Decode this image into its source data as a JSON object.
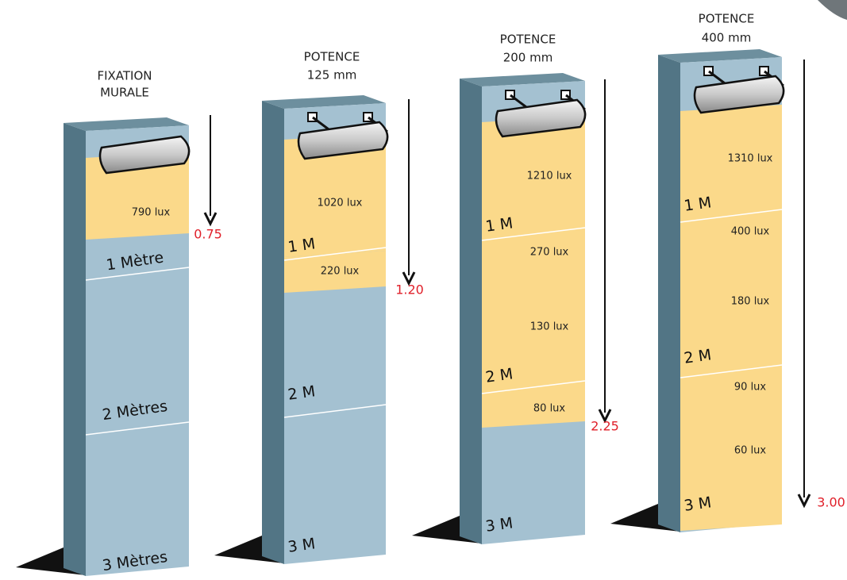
{
  "columns": [
    {
      "title": [
        "FIXATION",
        "MURALE"
      ],
      "lux": [
        "790 lux"
      ],
      "meters": [
        "1 Mètre",
        "2 Mètres",
        "3 Mètres"
      ],
      "distance": "0.75"
    },
    {
      "title": [
        "POTENCE",
        "125 mm"
      ],
      "lux": [
        "1020 lux",
        "220 lux"
      ],
      "meters": [
        "1 M",
        "2 M",
        "3 M"
      ],
      "distance": "1.20"
    },
    {
      "title": [
        "POTENCE",
        "200 mm"
      ],
      "lux": [
        "1210 lux",
        "270 lux",
        "130 lux",
        "80 lux"
      ],
      "meters": [
        "1 M",
        "2 M",
        "3 M"
      ],
      "distance": "2.25"
    },
    {
      "title": [
        "POTENCE",
        "400 mm"
      ],
      "lux": [
        "1310 lux",
        "400 lux",
        "180 lux",
        "90 lux",
        "60 lux"
      ],
      "meters": [
        "1 M",
        "2 M",
        "3 M"
      ],
      "distance": "3.00"
    }
  ]
}
